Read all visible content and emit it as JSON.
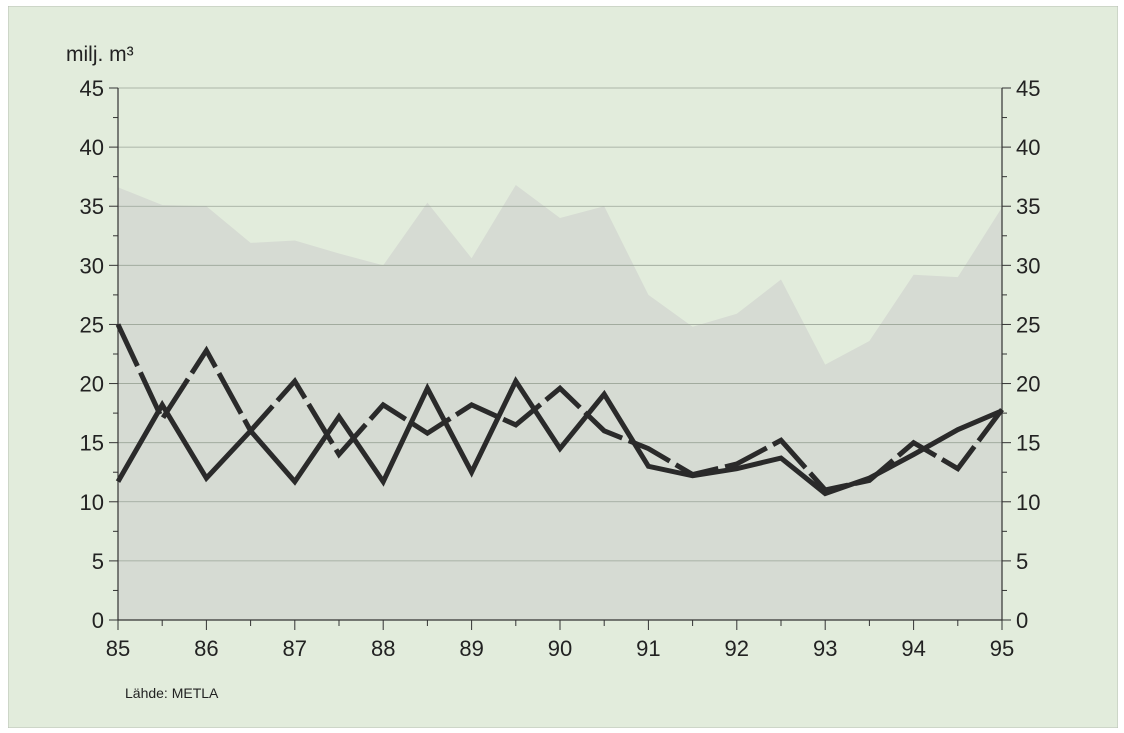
{
  "chart_data": {
    "type": "line",
    "unit_label": "milj. m³",
    "source": "Lähde: METLA",
    "x": [
      "85",
      "85.5",
      "86",
      "86.5",
      "87",
      "87.5",
      "88",
      "88.5",
      "89",
      "89.5",
      "90",
      "90.5",
      "91",
      "91.5",
      "92",
      "92.5",
      "93",
      "93.5",
      "94",
      "94.5",
      "95"
    ],
    "x_ticks": [
      "85",
      "86",
      "87",
      "88",
      "89",
      "90",
      "91",
      "92",
      "93",
      "94",
      "95"
    ],
    "y_ticks": [
      0,
      5,
      10,
      15,
      20,
      25,
      30,
      35,
      40,
      45
    ],
    "ylim": [
      0,
      45
    ],
    "grid": true,
    "area": [
      36.6,
      35.1,
      35.0,
      31.9,
      32.1,
      31.0,
      30.0,
      35.3,
      30.6,
      36.8,
      34.0,
      35.0,
      27.5,
      24.8,
      25.9,
      28.8,
      21.6,
      23.6,
      29.2,
      29.0,
      34.9
    ],
    "series": [
      {
        "style": "solid",
        "values": [
          11.7,
          18.2,
          12.0,
          16.0,
          11.7,
          17.2,
          11.7,
          19.6,
          12.5,
          20.2,
          14.5,
          19.1,
          13.0,
          12.2,
          12.8,
          13.7,
          10.7,
          12.0,
          14.0,
          16.1,
          17.7
        ]
      },
      {
        "style": "dashed",
        "values": [
          25.0,
          17.0,
          22.8,
          16.0,
          20.2,
          14.0,
          18.2,
          15.8,
          18.2,
          16.5,
          19.6,
          16.0,
          14.5,
          12.3,
          13.2,
          15.2,
          11.0,
          11.8,
          15.0,
          12.8,
          17.8
        ]
      }
    ],
    "colors": {
      "background": "#e2ecdc",
      "area": "#d6dbd3",
      "line": "#2a2a2a",
      "grid": "#9aa497",
      "text": "#222222"
    }
  }
}
